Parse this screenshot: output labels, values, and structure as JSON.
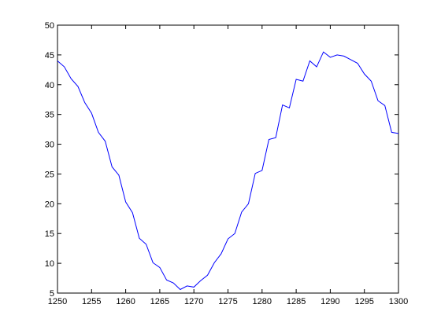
{
  "chart_data": {
    "type": "line",
    "x": [
      1250,
      1251,
      1252,
      1253,
      1254,
      1255,
      1256,
      1257,
      1258,
      1259,
      1260,
      1261,
      1262,
      1263,
      1264,
      1265,
      1266,
      1267,
      1268,
      1269,
      1270,
      1271,
      1272,
      1273,
      1274,
      1275,
      1276,
      1277,
      1278,
      1279,
      1280,
      1281,
      1282,
      1283,
      1284,
      1285,
      1286,
      1287,
      1288,
      1289,
      1290,
      1291,
      1292,
      1293,
      1294,
      1295,
      1296,
      1297,
      1298,
      1299,
      1300
    ],
    "series": [
      {
        "color": "#0000ff",
        "values": [
          44,
          43,
          41,
          39.7,
          37,
          35.2,
          32,
          30.5,
          26.2,
          24.8,
          20.3,
          18.5,
          14.2,
          13.2,
          10.1,
          9.3,
          7.2,
          6.7,
          5.6,
          6.2,
          6.0,
          7.1,
          8.0,
          10.1,
          11.6,
          14.1,
          15.0,
          18.6,
          20.0,
          25.1,
          25.6,
          30.8,
          31.1,
          36.6,
          36.1,
          40.9,
          40.6,
          44.0,
          43.0,
          45.5,
          44.6,
          45.0,
          44.8,
          44.2,
          43.6,
          41.8,
          40.6,
          37.3,
          36.5,
          32.0,
          31.8
        ]
      }
    ],
    "xlim": [
      1250,
      1300
    ],
    "xticks": [
      1250,
      1255,
      1260,
      1265,
      1270,
      1275,
      1280,
      1285,
      1290,
      1295,
      1300
    ],
    "ylim": [
      5,
      50
    ],
    "yticks": [
      5,
      10,
      15,
      20,
      25,
      30,
      35,
      40,
      45,
      50
    ]
  }
}
